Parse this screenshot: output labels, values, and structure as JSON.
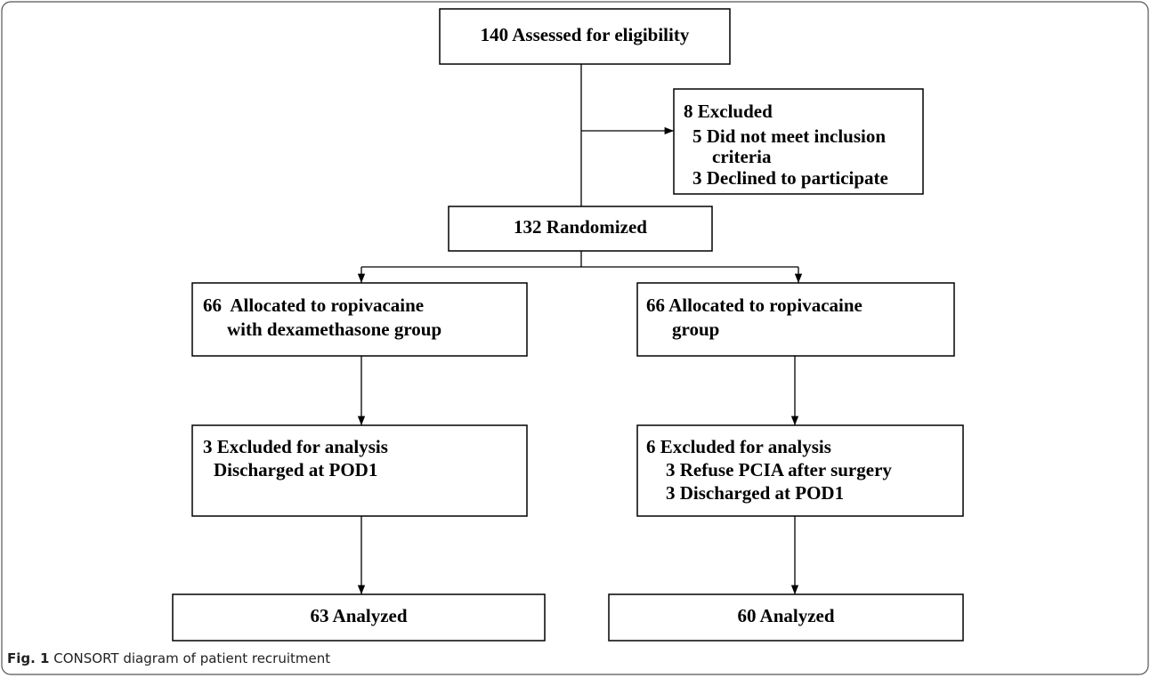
{
  "nodes": [
    {
      "lines": [
        "140 Assessed for eligibility"
      ]
    },
    {
      "lines": [
        "8 Excluded",
        "5 Did not meet inclusion",
        "criteria",
        "3 Declined to participate"
      ]
    },
    {
      "lines": [
        "132 Randomized"
      ]
    },
    {
      "lines": [
        "66  Allocated to ropivacaine",
        "with dexamethasone group"
      ]
    },
    {
      "lines": [
        "66 Allocated to ropivacaine",
        "group"
      ]
    },
    {
      "lines": [
        "3 Excluded for analysis",
        "Discharged at POD1"
      ]
    },
    {
      "lines": [
        "6 Excluded for analysis",
        "3 Refuse PCIA after surgery",
        "3 Discharged at POD1"
      ]
    },
    {
      "lines": [
        "63 Analyzed"
      ]
    },
    {
      "lines": [
        "60 Analyzed"
      ]
    }
  ],
  "caption": {
    "label": "Fig. 1",
    "text": "CONSORT diagram of patient recruitment"
  }
}
